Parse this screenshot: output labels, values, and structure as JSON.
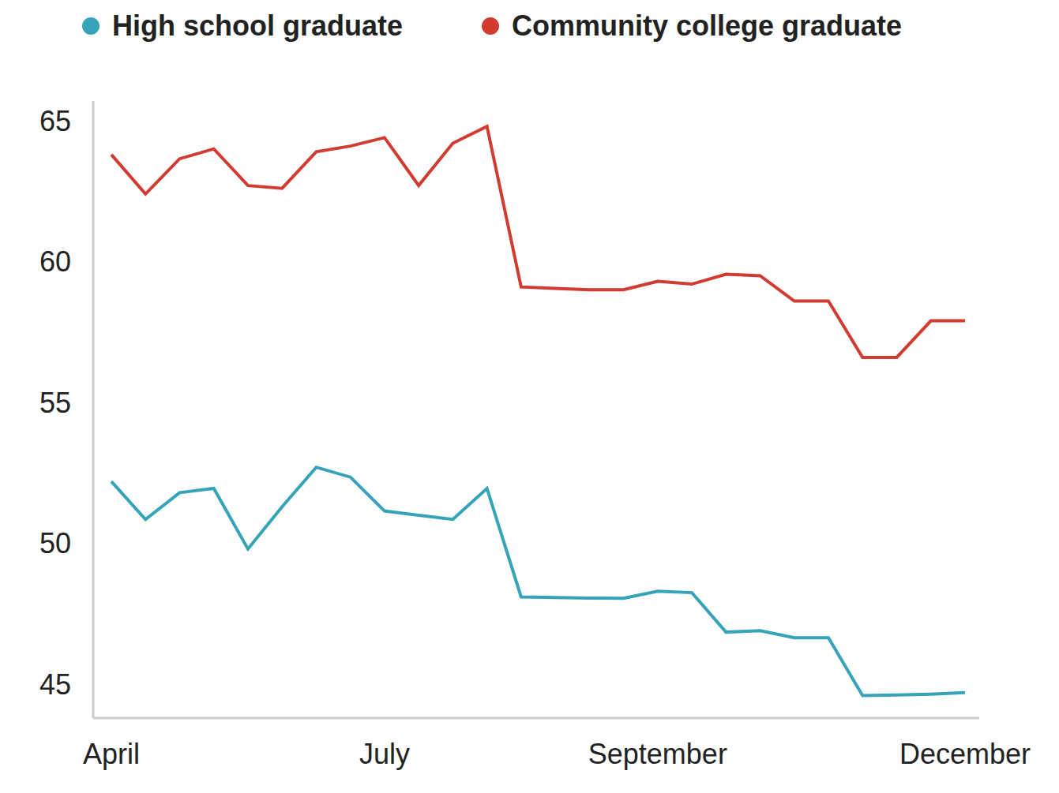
{
  "chart_data": {
    "type": "line",
    "categories": [
      "April",
      null,
      null,
      null,
      null,
      null,
      null,
      null,
      "July",
      null,
      null,
      null,
      null,
      null,
      null,
      null,
      "September",
      null,
      null,
      null,
      null,
      null,
      null,
      null,
      null,
      "December"
    ],
    "series": [
      {
        "name": "High school graduate",
        "color": "#35a3b8",
        "values": [
          52.2,
          50.85,
          51.8,
          51.95,
          49.8,
          51.3,
          52.7,
          52.35,
          51.15,
          51.0,
          50.85,
          51.95,
          48.1,
          48.08,
          48.06,
          48.05,
          48.3,
          48.25,
          46.85,
          46.9,
          46.65,
          46.65,
          44.6,
          44.62,
          44.65,
          44.7
        ]
      },
      {
        "name": "Community college graduate",
        "color": "#d13b30",
        "values": [
          63.8,
          62.4,
          63.65,
          64.0,
          62.7,
          62.6,
          63.9,
          64.1,
          64.4,
          62.7,
          64.2,
          64.8,
          59.1,
          59.05,
          59.0,
          59.0,
          59.3,
          59.2,
          59.55,
          59.5,
          58.6,
          58.6,
          56.6,
          56.6,
          57.9,
          57.9
        ]
      }
    ],
    "ylim": [
      43.8,
      65.7
    ],
    "yticks": [
      45,
      50,
      55,
      60,
      65
    ],
    "grid": false,
    "legend": "upper left"
  }
}
